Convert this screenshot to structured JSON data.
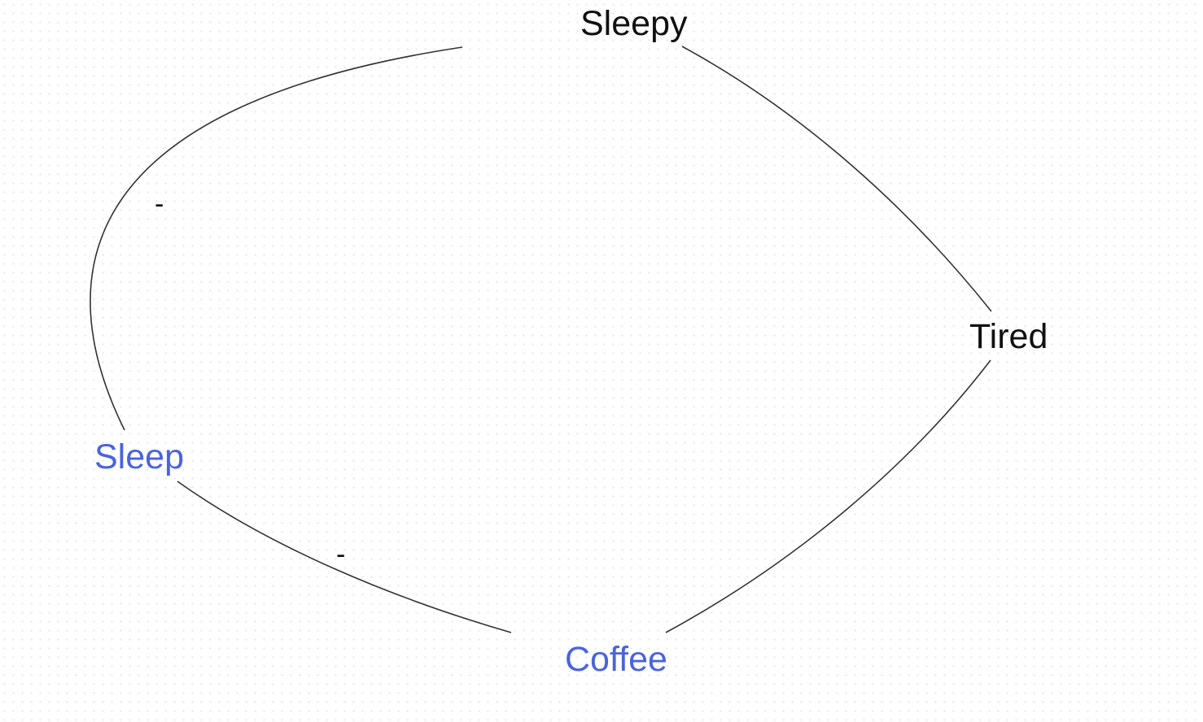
{
  "colors": {
    "default_node": "#111111",
    "highlight_node": "#4a63de",
    "edge": "#333333"
  },
  "nodes": [
    {
      "id": "sleepy",
      "label": "Sleepy",
      "highlighted": false
    },
    {
      "id": "tired",
      "label": "Tired",
      "highlighted": false
    },
    {
      "id": "sleep",
      "label": "Sleep",
      "highlighted": true
    },
    {
      "id": "coffee",
      "label": "Coffee",
      "highlighted": true
    }
  ],
  "edges": [
    {
      "from": "sleepy",
      "to": "tired",
      "polarity": ""
    },
    {
      "from": "tired",
      "to": "coffee",
      "polarity": ""
    },
    {
      "from": "coffee",
      "to": "sleep",
      "polarity": "-"
    },
    {
      "from": "sleep",
      "to": "sleepy",
      "polarity": "-"
    }
  ]
}
